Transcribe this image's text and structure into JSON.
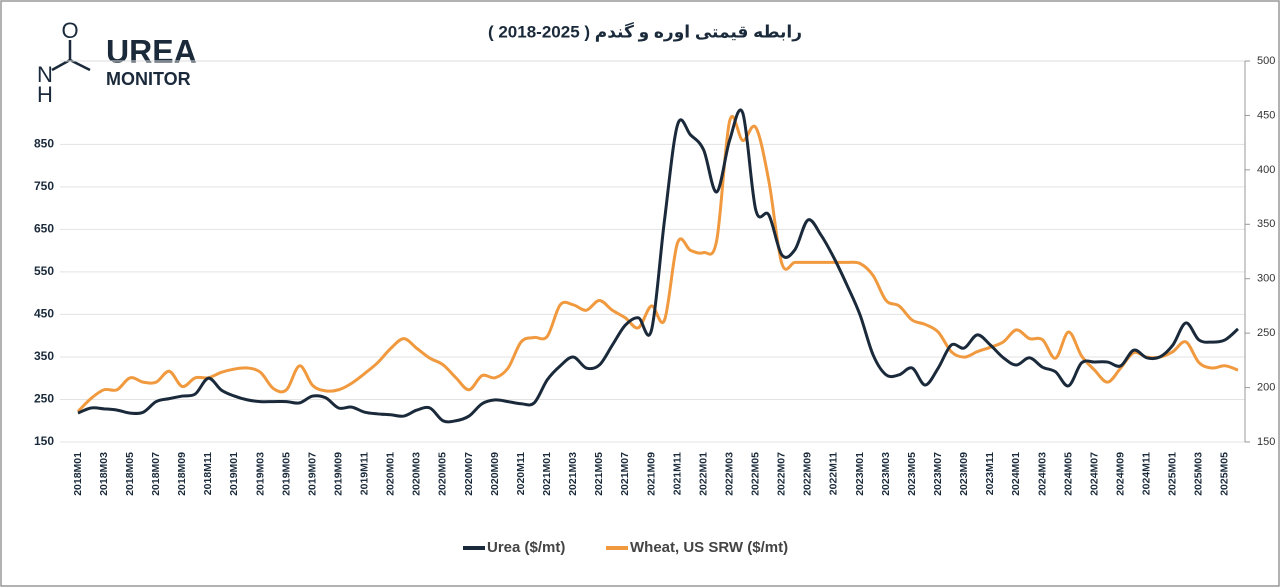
{
  "logo": {
    "atom_o": "O",
    "atom_n": "N",
    "atom_h": "H",
    "line1": "UREA",
    "line2": "MONITOR"
  },
  "chart_data": {
    "type": "line",
    "title": "رابطه قیمتی اوره و گندم ( 2025-2018 )",
    "categories": [
      "2018M01",
      null,
      "2018M03",
      null,
      "2018M05",
      null,
      "2018M07",
      null,
      "2018M09",
      null,
      "2018M11",
      null,
      "2019M01",
      null,
      "2019M03",
      null,
      "2019M05",
      null,
      "2019M07",
      null,
      "2019M09",
      null,
      "2019M11",
      null,
      "2020M01",
      null,
      "2020M03",
      null,
      "2020M05",
      null,
      "2020M07",
      null,
      "2020M09",
      null,
      "2020M11",
      null,
      "2021M01",
      null,
      "2021M03",
      null,
      "2021M05",
      null,
      "2021M07",
      null,
      "2021M09",
      null,
      "2021M11",
      null,
      "2022M01",
      null,
      "2022M03",
      null,
      "2022M05",
      null,
      "2022M07",
      null,
      "2022M09",
      null,
      "2022M11",
      null,
      "2023M01",
      null,
      "2023M03",
      null,
      "2023M05",
      null,
      "2023M07",
      null,
      "2023M09",
      null,
      "2023M11",
      null,
      "2024M01",
      null,
      "2024M03",
      null,
      "2024M05",
      null,
      "2024M07",
      null,
      "2024M09",
      null,
      "2024M11",
      null,
      "2025M01",
      null,
      "2025M03",
      null,
      "2025M05",
      null
    ],
    "series": [
      {
        "name": "Urea ($/mt)",
        "color": "#1b2a3b",
        "values": [
          218,
          230,
          228,
          225,
          218,
          220,
          245,
          252,
          258,
          263,
          300,
          272,
          258,
          249,
          245,
          245,
          245,
          242,
          258,
          254,
          230,
          232,
          220,
          216,
          214,
          211,
          225,
          230,
          200,
          200,
          211,
          240,
          249,
          245,
          240,
          242,
          296,
          329,
          350,
          324,
          331,
          378,
          425,
          442,
          413,
          672,
          896,
          872,
          837,
          738,
          860,
          924,
          696,
          684,
          590,
          602,
          672,
          637,
          583,
          519,
          449,
          355,
          308,
          308,
          324,
          284,
          324,
          378,
          371,
          402,
          378,
          348,
          331,
          348,
          326,
          315,
          282,
          336,
          338,
          338,
          329,
          366,
          348,
          350,
          378,
          430,
          390,
          385,
          390,
          416
        ]
      },
      {
        "name": "Wheat, US SRW ($/mt)",
        "color": "#f0993e",
        "axis": "y2",
        "values": [
          178,
          190,
          198,
          198,
          209,
          205,
          205,
          215,
          201,
          209,
          209,
          214,
          217,
          218,
          214,
          199,
          198,
          220,
          202,
          197,
          198,
          204,
          213,
          223,
          236,
          245,
          236,
          227,
          221,
          209,
          198,
          211,
          209,
          218,
          242,
          246,
          247,
          276,
          276,
          271,
          280,
          271,
          264,
          255,
          275,
          262,
          333,
          326,
          324,
          335,
          445,
          427,
          439,
          390,
          314,
          315,
          315,
          315,
          315,
          315,
          314,
          303,
          280,
          275,
          262,
          258,
          251,
          233,
          228,
          233,
          237,
          242,
          253,
          245,
          244,
          227,
          251,
          229,
          216,
          205,
          218,
          232,
          228,
          228,
          233,
          242,
          223,
          218,
          220,
          216
        ]
      }
    ],
    "ylim": [
      150,
      1046
    ],
    "yticks": [
      150,
      250,
      350,
      450,
      550,
      650,
      750,
      850
    ],
    "y2lim": [
      150,
      500
    ],
    "y2ticks": [
      150,
      200,
      250,
      300,
      350,
      400,
      450,
      500
    ],
    "grid": true
  }
}
